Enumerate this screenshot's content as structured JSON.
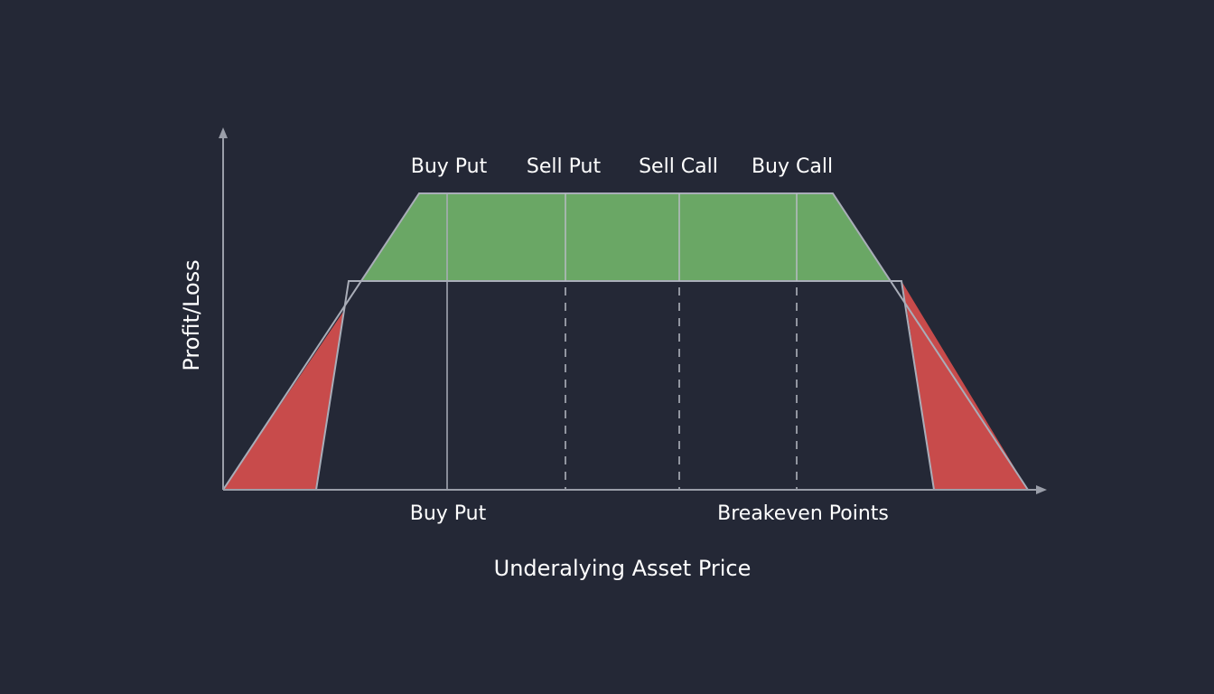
{
  "diagram": {
    "top_labels": [
      "Buy Put",
      "Sell Put",
      "Sell Call",
      "Buy Call"
    ],
    "bottom_labels": {
      "left": "Buy Put",
      "right": "Breakeven Points"
    },
    "x_axis_title": "Underalying Asset Price",
    "y_axis_title": "Profit/Loss"
  },
  "colors": {
    "background": "#242836",
    "profit_fill": "#6aa765",
    "loss_fill": "#c84b4b",
    "outline": "#a9adb8",
    "axis": "#9a9ea9",
    "text": "#ffffff",
    "dashed": "#b7bbc4"
  }
}
